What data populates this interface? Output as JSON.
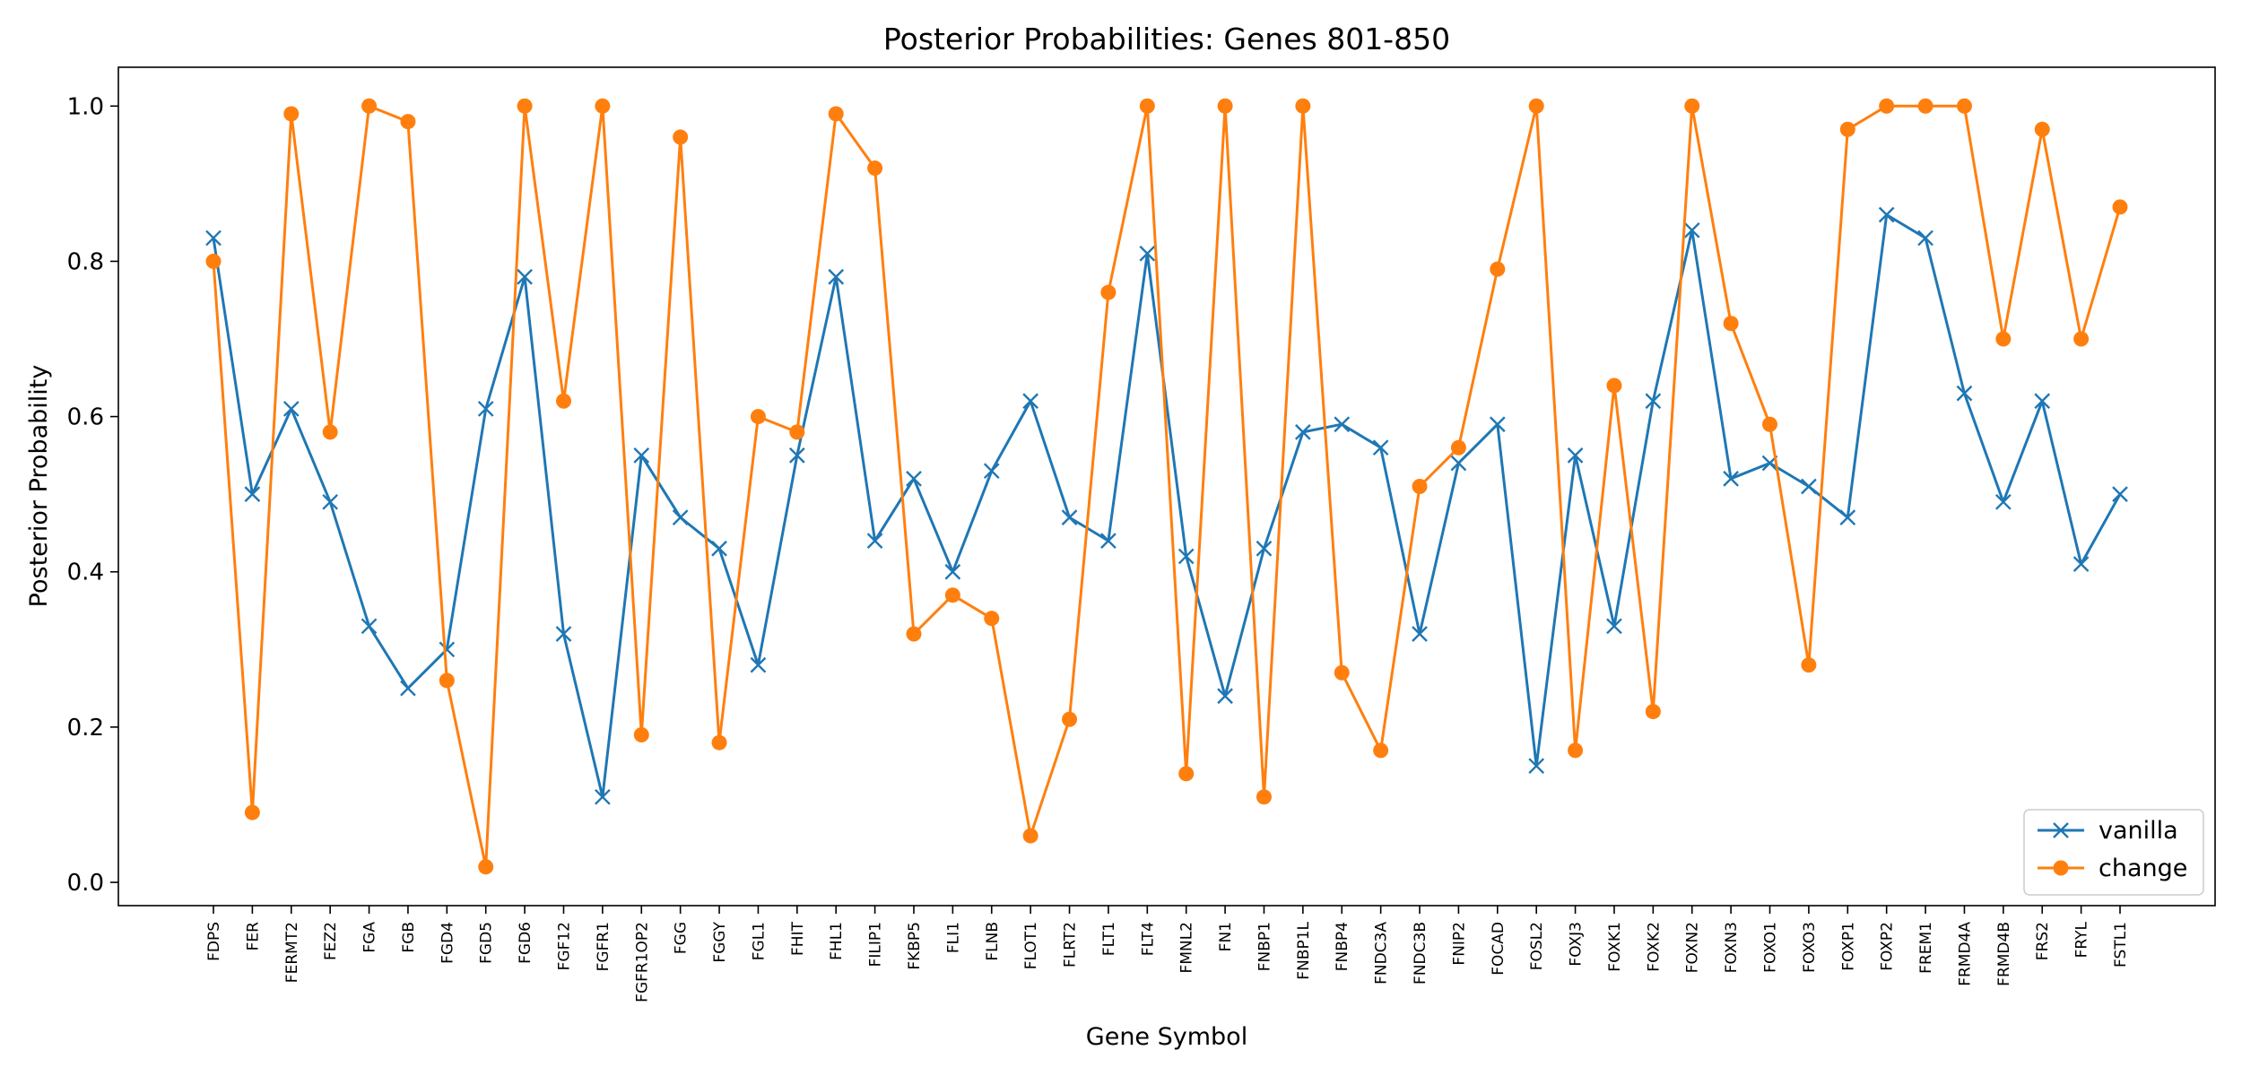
{
  "colors": {
    "vanilla": "#1f77b4",
    "change": "#ff7f0e"
  },
  "chart_data": {
    "type": "line",
    "title": "Posterior Probabilities: Genes 801-850",
    "xlabel": "Gene Symbol",
    "ylabel": "Posterior Probability",
    "ylim": [
      -0.03,
      1.05
    ],
    "yticks": [
      "0.0",
      "0.2",
      "0.4",
      "0.6",
      "0.8",
      "1.0"
    ],
    "grid": false,
    "legend_position": "lower-right",
    "categories": [
      "FDPS",
      "FER",
      "FERMT2",
      "FEZ2",
      "FGA",
      "FGB",
      "FGD4",
      "FGD5",
      "FGD6",
      "FGF12",
      "FGFR1",
      "FGFR1OP2",
      "FGG",
      "FGGY",
      "FGL1",
      "FHIT",
      "FHL1",
      "FILIP1",
      "FKBP5",
      "FLI1",
      "FLNB",
      "FLOT1",
      "FLRT2",
      "FLT1",
      "FLT4",
      "FMNL2",
      "FN1",
      "FNBP1",
      "FNBP1L",
      "FNBP4",
      "FNDC3A",
      "FNDC3B",
      "FNIP2",
      "FOCAD",
      "FOSL2",
      "FOXJ3",
      "FOXK1",
      "FOXK2",
      "FOXN2",
      "FOXN3",
      "FOXO1",
      "FOXO3",
      "FOXP1",
      "FOXP2",
      "FREM1",
      "FRMD4A",
      "FRMD4B",
      "FRS2",
      "FRYL",
      "FSTL1"
    ],
    "series": [
      {
        "name": "vanilla",
        "marker": "x",
        "values": [
          0.83,
          0.5,
          0.61,
          0.49,
          0.33,
          0.25,
          0.3,
          0.61,
          0.78,
          0.32,
          0.11,
          0.55,
          0.47,
          0.43,
          0.28,
          0.55,
          0.78,
          0.44,
          0.52,
          0.4,
          0.53,
          0.62,
          0.47,
          0.44,
          0.81,
          0.42,
          0.24,
          0.43,
          0.58,
          0.59,
          0.56,
          0.32,
          0.54,
          0.59,
          0.15,
          0.55,
          0.33,
          0.62,
          0.84,
          0.52,
          0.54,
          0.51,
          0.47,
          0.86,
          0.83,
          0.63,
          0.49,
          0.62,
          0.41,
          0.5
        ]
      },
      {
        "name": "change",
        "marker": "o",
        "values": [
          0.8,
          0.09,
          0.99,
          0.58,
          1.0,
          0.98,
          0.26,
          0.02,
          1.0,
          0.62,
          1.0,
          0.19,
          0.96,
          0.18,
          0.6,
          0.58,
          0.99,
          0.92,
          0.32,
          0.37,
          0.34,
          0.06,
          0.21,
          0.76,
          1.0,
          0.14,
          1.0,
          0.11,
          1.0,
          0.27,
          0.17,
          0.51,
          0.56,
          0.79,
          1.0,
          0.17,
          0.64,
          0.22,
          1.0,
          0.72,
          0.59,
          0.28,
          0.97,
          1.0,
          1.0,
          1.0,
          0.7,
          0.97,
          0.7,
          0.87
        ]
      }
    ]
  }
}
